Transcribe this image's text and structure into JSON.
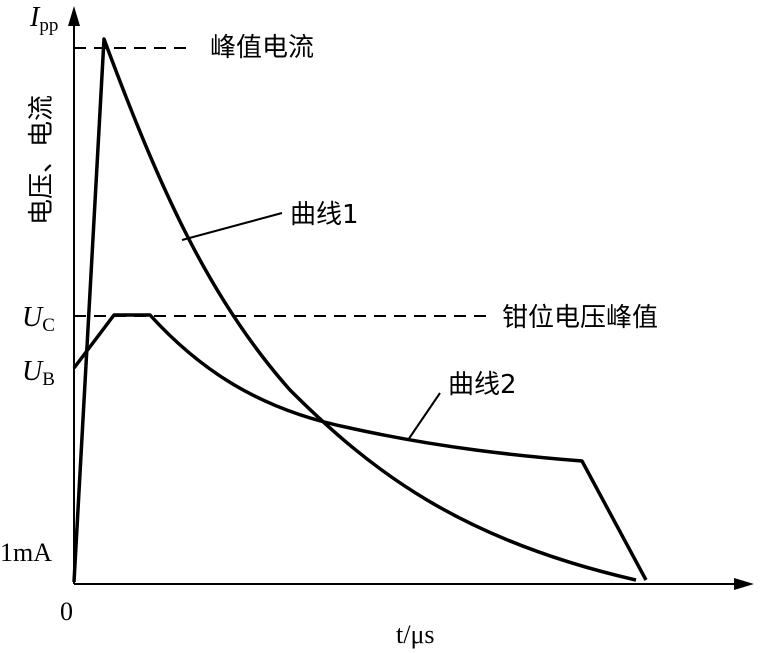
{
  "axes": {
    "y_label_symbol": "I",
    "y_label_subscript": "pp",
    "y_axis_title": "电压、电流",
    "x_axis_title": "t/μs",
    "origin_label": "0",
    "tick_1mA": "1mA",
    "tick_uc_symbol": "U",
    "tick_uc_subscript": "C",
    "tick_ub_symbol": "U",
    "tick_ub_subscript": "B"
  },
  "annotations": {
    "peak_current": "峰值电流",
    "clamp_voltage_peak": "钳位电压峰值",
    "curve1_label": "曲线1",
    "curve2_label": "曲线2"
  }
}
